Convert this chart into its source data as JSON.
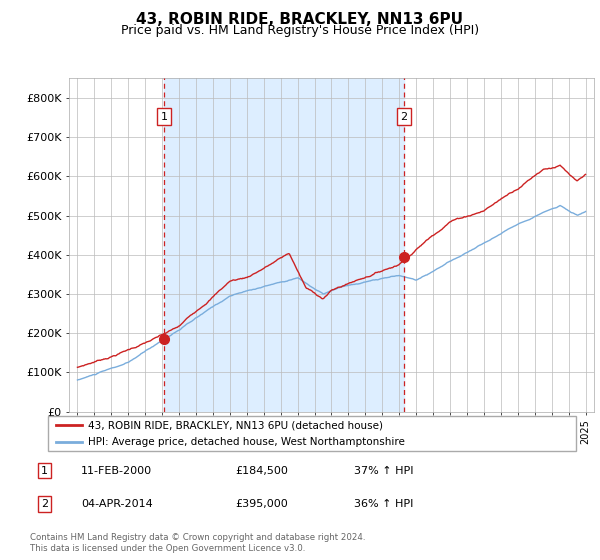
{
  "title": "43, ROBIN RIDE, BRACKLEY, NN13 6PU",
  "subtitle": "Price paid vs. HM Land Registry's House Price Index (HPI)",
  "title_fontsize": 11,
  "subtitle_fontsize": 9,
  "ylim": [
    0,
    850000
  ],
  "yticks": [
    0,
    100000,
    200000,
    300000,
    400000,
    500000,
    600000,
    700000,
    800000
  ],
  "ytick_labels": [
    "£0",
    "£100K",
    "£200K",
    "£300K",
    "£400K",
    "£500K",
    "£600K",
    "£700K",
    "£800K"
  ],
  "hpi_color": "#7aaddc",
  "price_color": "#cc2222",
  "marker_color": "#cc2222",
  "vline_color": "#cc2222",
  "bg_color": "#ddeeff",
  "grid_color": "#bbbbbb",
  "legend_label_price": "43, ROBIN RIDE, BRACKLEY, NN13 6PU (detached house)",
  "legend_label_hpi": "HPI: Average price, detached house, West Northamptonshire",
  "purchase1_x": 2000.1,
  "purchase1_y": 184500,
  "purchase1_label": "1",
  "purchase2_x": 2014.27,
  "purchase2_y": 395000,
  "purchase2_label": "2",
  "footnote": "Contains HM Land Registry data © Crown copyright and database right 2024.\nThis data is licensed under the Open Government Licence v3.0.",
  "xlim_left": 1994.5,
  "xlim_right": 2025.5,
  "xtick_start": 1995,
  "xtick_end": 2025,
  "xtick_step": 1
}
